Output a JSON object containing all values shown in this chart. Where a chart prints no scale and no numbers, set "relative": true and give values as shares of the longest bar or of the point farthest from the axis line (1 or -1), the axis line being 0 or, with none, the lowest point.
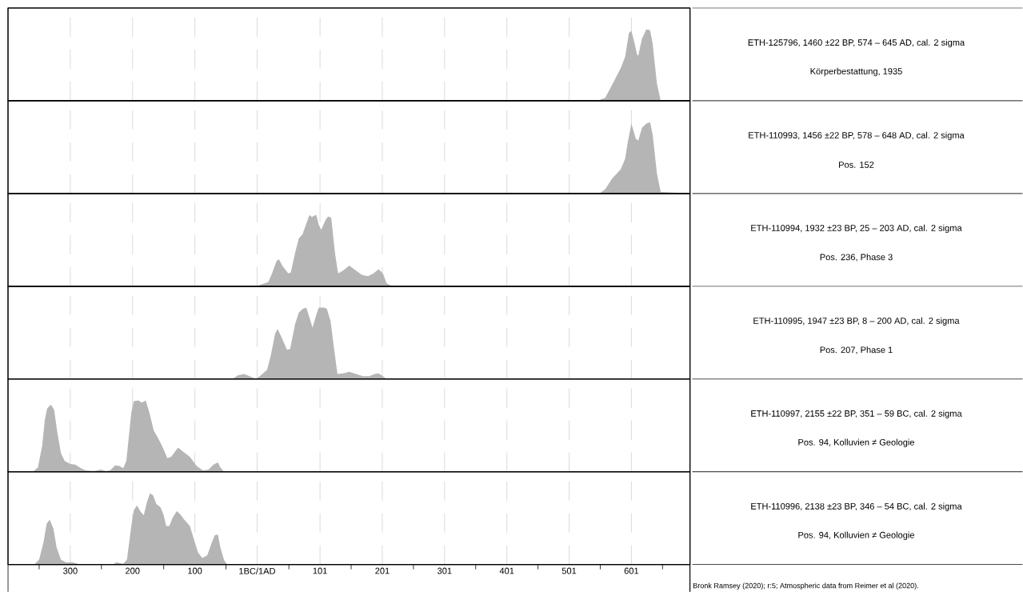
{
  "chart_data": [
    {
      "type": "area",
      "relative": true,
      "color": "#b4b5b4",
      "grid": "x",
      "tick_labels": false,
      "xlim": [
        -400,
        695
      ],
      "xticks": [
        -300,
        -200,
        -100,
        0,
        101,
        201,
        301,
        401,
        501,
        601
      ],
      "x": [
        492,
        546,
        559,
        571,
        584,
        591,
        597,
        601,
        606,
        610,
        612,
        618,
        625,
        631,
        635,
        642,
        648,
        695
      ],
      "values": [
        0,
        0,
        0.04,
        0.24,
        0.46,
        0.62,
        0.95,
        0.98,
        0.81,
        0.65,
        0.63,
        0.87,
        1.0,
        0.99,
        0.81,
        0.24,
        0,
        0
      ]
    },
    {
      "type": "area",
      "relative": true,
      "color": "#b4b5b4",
      "grid": "x",
      "tick_labels": false,
      "xlim": [
        -400,
        695
      ],
      "xticks": [
        -300,
        -200,
        -100,
        0,
        101,
        201,
        301,
        401,
        501,
        601
      ],
      "x": [
        492,
        550,
        559,
        570,
        584,
        591,
        595,
        601,
        608,
        612,
        618,
        625,
        631,
        635,
        642,
        648,
        695
      ],
      "values": [
        0,
        0,
        0.06,
        0.21,
        0.34,
        0.49,
        0.71,
        0.98,
        0.77,
        0.74,
        0.92,
        0.98,
        1.0,
        0.83,
        0.28,
        0.02,
        0
      ]
    },
    {
      "type": "area",
      "relative": true,
      "color": "#b4b5b4",
      "grid": "x",
      "tick_labels": false,
      "xlim": [
        -400,
        695
      ],
      "xticks": [
        -300,
        -200,
        -100,
        0,
        101,
        201,
        301,
        401,
        501,
        601
      ],
      "x": [
        -50,
        -1,
        18,
        24,
        31,
        35,
        41,
        50,
        54,
        61,
        67,
        73,
        84,
        88,
        92,
        95,
        99,
        103,
        110,
        114,
        119,
        125,
        130,
        138,
        148,
        157,
        168,
        178,
        187,
        195,
        202,
        208,
        217,
        266
      ],
      "values": [
        0,
        0,
        0.06,
        0.18,
        0.35,
        0.38,
        0.28,
        0.18,
        0.19,
        0.47,
        0.67,
        0.73,
        1.0,
        0.97,
        0.99,
        1.0,
        0.86,
        0.79,
        0.93,
        0.98,
        0.96,
        0.47,
        0.18,
        0.22,
        0.29,
        0.23,
        0.16,
        0.14,
        0.18,
        0.24,
        0.18,
        0.04,
        0,
        0
      ]
    },
    {
      "type": "area",
      "relative": true,
      "color": "#b4b5b4",
      "grid": "x",
      "tick_labels": false,
      "xlim": [
        -400,
        695
      ],
      "xticks": [
        -300,
        -200,
        -100,
        0,
        101,
        201,
        301,
        401,
        501,
        601
      ],
      "x": [
        -96,
        -40,
        -31,
        -21,
        -12,
        -2,
        7,
        16,
        22,
        29,
        33,
        39,
        48,
        53,
        61,
        67,
        73,
        79,
        84,
        89,
        95,
        99,
        108,
        112,
        118,
        123,
        129,
        138,
        148,
        159,
        170,
        180,
        189,
        195,
        202,
        208,
        262
      ],
      "values": [
        0,
        0,
        0.05,
        0.07,
        0.04,
        0,
        0.06,
        0.13,
        0.33,
        0.64,
        0.7,
        0.59,
        0.41,
        0.42,
        0.77,
        0.93,
        0.98,
        1.0,
        0.86,
        0.72,
        0.9,
        1.0,
        1.0,
        0.98,
        0.81,
        0.46,
        0.07,
        0.08,
        0.1,
        0.07,
        0.04,
        0.04,
        0.07,
        0.08,
        0.04,
        0,
        0
      ]
    },
    {
      "type": "area",
      "relative": true,
      "color": "#b4b5b4",
      "grid": "x",
      "tick_labels": false,
      "xlim": [
        -400,
        695
      ],
      "xticks": [
        -300,
        -200,
        -100,
        0,
        101,
        201,
        301,
        401,
        501,
        601
      ],
      "x": [
        -399,
        -360,
        -352,
        -345,
        -341,
        -337,
        -331,
        -326,
        -321,
        -315,
        -309,
        -300,
        -292,
        -283,
        -275,
        -262,
        -251,
        -243,
        -236,
        -228,
        -221,
        -215,
        -210,
        -202,
        -198,
        -191,
        -185,
        -179,
        -173,
        -166,
        -159,
        -153,
        -144,
        -138,
        -127,
        -117,
        -108,
        -97,
        -87,
        -78,
        -70,
        -63,
        -59,
        -53,
        1
      ],
      "values": [
        0,
        0,
        0.06,
        0.37,
        0.72,
        0.89,
        0.94,
        0.87,
        0.56,
        0.26,
        0.15,
        0.11,
        0.1,
        0.05,
        0.02,
        0.01,
        0.03,
        0.01,
        0.02,
        0.09,
        0.08,
        0.05,
        0.15,
        0.83,
        0.99,
        1.0,
        0.97,
        1.0,
        0.83,
        0.58,
        0.47,
        0.37,
        0.19,
        0.21,
        0.34,
        0.27,
        0.21,
        0.08,
        0.02,
        0.03,
        0.1,
        0.13,
        0.06,
        0,
        0
      ]
    },
    {
      "type": "area",
      "relative": true,
      "color": "#b4b5b4",
      "grid": "x",
      "xlim": [
        -400,
        695
      ],
      "xticks": [
        {
          "value": -350,
          "label": null
        },
        {
          "value": -300,
          "label": "300"
        },
        {
          "value": -250,
          "label": null
        },
        {
          "value": -200,
          "label": "200"
        },
        {
          "value": -150,
          "label": null
        },
        {
          "value": -100,
          "label": "100"
        },
        {
          "value": -50,
          "label": null
        },
        {
          "value": 0,
          "label": "1BC/1AD"
        },
        {
          "value": 51,
          "label": null
        },
        101,
        {
          "value": 151,
          "label": null
        },
        201,
        {
          "value": 251,
          "label": null
        },
        301,
        {
          "value": 351,
          "label": null
        },
        401,
        {
          "value": 451,
          "label": null
        },
        501,
        {
          "value": 551,
          "label": null
        },
        601,
        {
          "value": 651,
          "label": null
        }
      ],
      "x": [
        -399,
        -358,
        -350,
        -343,
        -338,
        -333,
        -327,
        -322,
        -315,
        -307,
        -296,
        -283,
        -232,
        -226,
        -215,
        -209,
        -202,
        -198,
        -193,
        -187,
        -182,
        -177,
        -172,
        -167,
        -162,
        -155,
        -150,
        -146,
        -141,
        -136,
        -129,
        -123,
        -117,
        -108,
        -102,
        -95,
        -88,
        -80,
        -74,
        -68,
        -63,
        -59,
        -53,
        -48,
        7
      ],
      "values": [
        0,
        0,
        0.07,
        0.31,
        0.57,
        0.63,
        0.5,
        0.24,
        0.07,
        0.03,
        0.03,
        0,
        0,
        0.03,
        0.01,
        0.07,
        0.54,
        0.76,
        0.83,
        0.74,
        0.69,
        0.87,
        1.0,
        0.97,
        0.85,
        0.8,
        0.69,
        0.54,
        0.54,
        0.65,
        0.75,
        0.7,
        0.63,
        0.54,
        0.37,
        0.17,
        0.09,
        0.13,
        0.28,
        0.41,
        0.42,
        0.24,
        0.06,
        0,
        0
      ]
    },
    {
      "type": "other",
      "annotations": [
        "ETH-125796, 1460 ±22 BP, 574 – 645 AD, cal. 2 sigma",
        "Körperbestattung, 1935",
        "ETH-110993, 1456 ±22 BP, 578 – 648 AD, cal. 2 sigma",
        "Pos. 152",
        "ETH-110994, 1932 ±23 BP, 25 – 203 AD, cal. 2 sigma",
        "Pos. 236, Phase 3",
        "ETH-110995, 1947 ±23 BP, 8 – 200 AD, cal. 2 sigma",
        "Pos. 207, Phase 1",
        "ETH-110997, 2155 ±22 BP, 351 – 59 BC, cal. 2 sigma",
        "Pos. 94, Kolluvien ≠ Geologie",
        "ETH-110996, 2138 ±23 BP, 346 – 54 BC, cal. 2 sigma",
        "Pos. 94, Kolluvien ≠ Geologie",
        "Bronk Ramsey (2020); r:5; Atmospheric data from Reimer et al (2020)."
      ]
    }
  ]
}
